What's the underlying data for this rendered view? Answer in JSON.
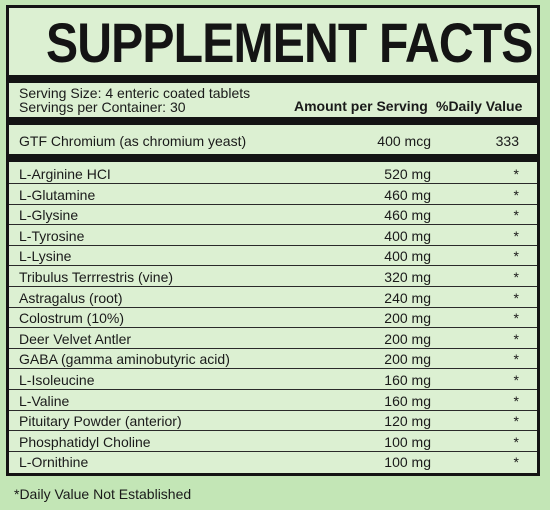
{
  "title": "SUPPLEMENT FACTS",
  "serving_size": "Serving Size: 4 enteric coated tablets",
  "servings_per_container": "Servings per Container: 30",
  "columns": {
    "amount": "Amount per Serving",
    "daily_value": "%Daily Value"
  },
  "featured": {
    "name": "GTF Chromium (as chromium yeast)",
    "amount": "400 mcg",
    "dv": "333"
  },
  "ingredients": [
    {
      "name": "L-Arginine HCI",
      "amount": "520 mg",
      "dv": "*"
    },
    {
      "name": "L-Glutamine",
      "amount": "460 mg",
      "dv": "*"
    },
    {
      "name": "L-Glysine",
      "amount": "460 mg",
      "dv": "*"
    },
    {
      "name": "L-Tyrosine",
      "amount": "400 mg",
      "dv": "*"
    },
    {
      "name": "L-Lysine",
      "amount": "400 mg",
      "dv": "*"
    },
    {
      "name": "Tribulus Terrrestris (vine)",
      "amount": "320 mg",
      "dv": "*"
    },
    {
      "name": "Astragalus (root)",
      "amount": "240 mg",
      "dv": "*"
    },
    {
      "name": "Colostrum (10%)",
      "amount": "200 mg",
      "dv": "*"
    },
    {
      "name": "Deer Velvet Antler",
      "amount": "200 mg",
      "dv": "*"
    },
    {
      "name": "GABA (gamma aminobutyric acid)",
      "amount": "200 mg",
      "dv": "*"
    },
    {
      "name": "L-Isoleucine",
      "amount": "160 mg",
      "dv": "*"
    },
    {
      "name": "L-Valine",
      "amount": "160 mg",
      "dv": "*"
    },
    {
      "name": "Pituitary Powder (anterior)",
      "amount": "120 mg",
      "dv": "*"
    },
    {
      "name": "Phosphatidyl Choline",
      "amount": "100 mg",
      "dv": "*"
    },
    {
      "name": "L-Ornithine",
      "amount": "100 mg",
      "dv": "*"
    }
  ],
  "footnote": "*Daily Value Not Established",
  "colors": {
    "background": "#c3e6b6",
    "panel": "#dcf0d2",
    "ink": "#141414"
  }
}
